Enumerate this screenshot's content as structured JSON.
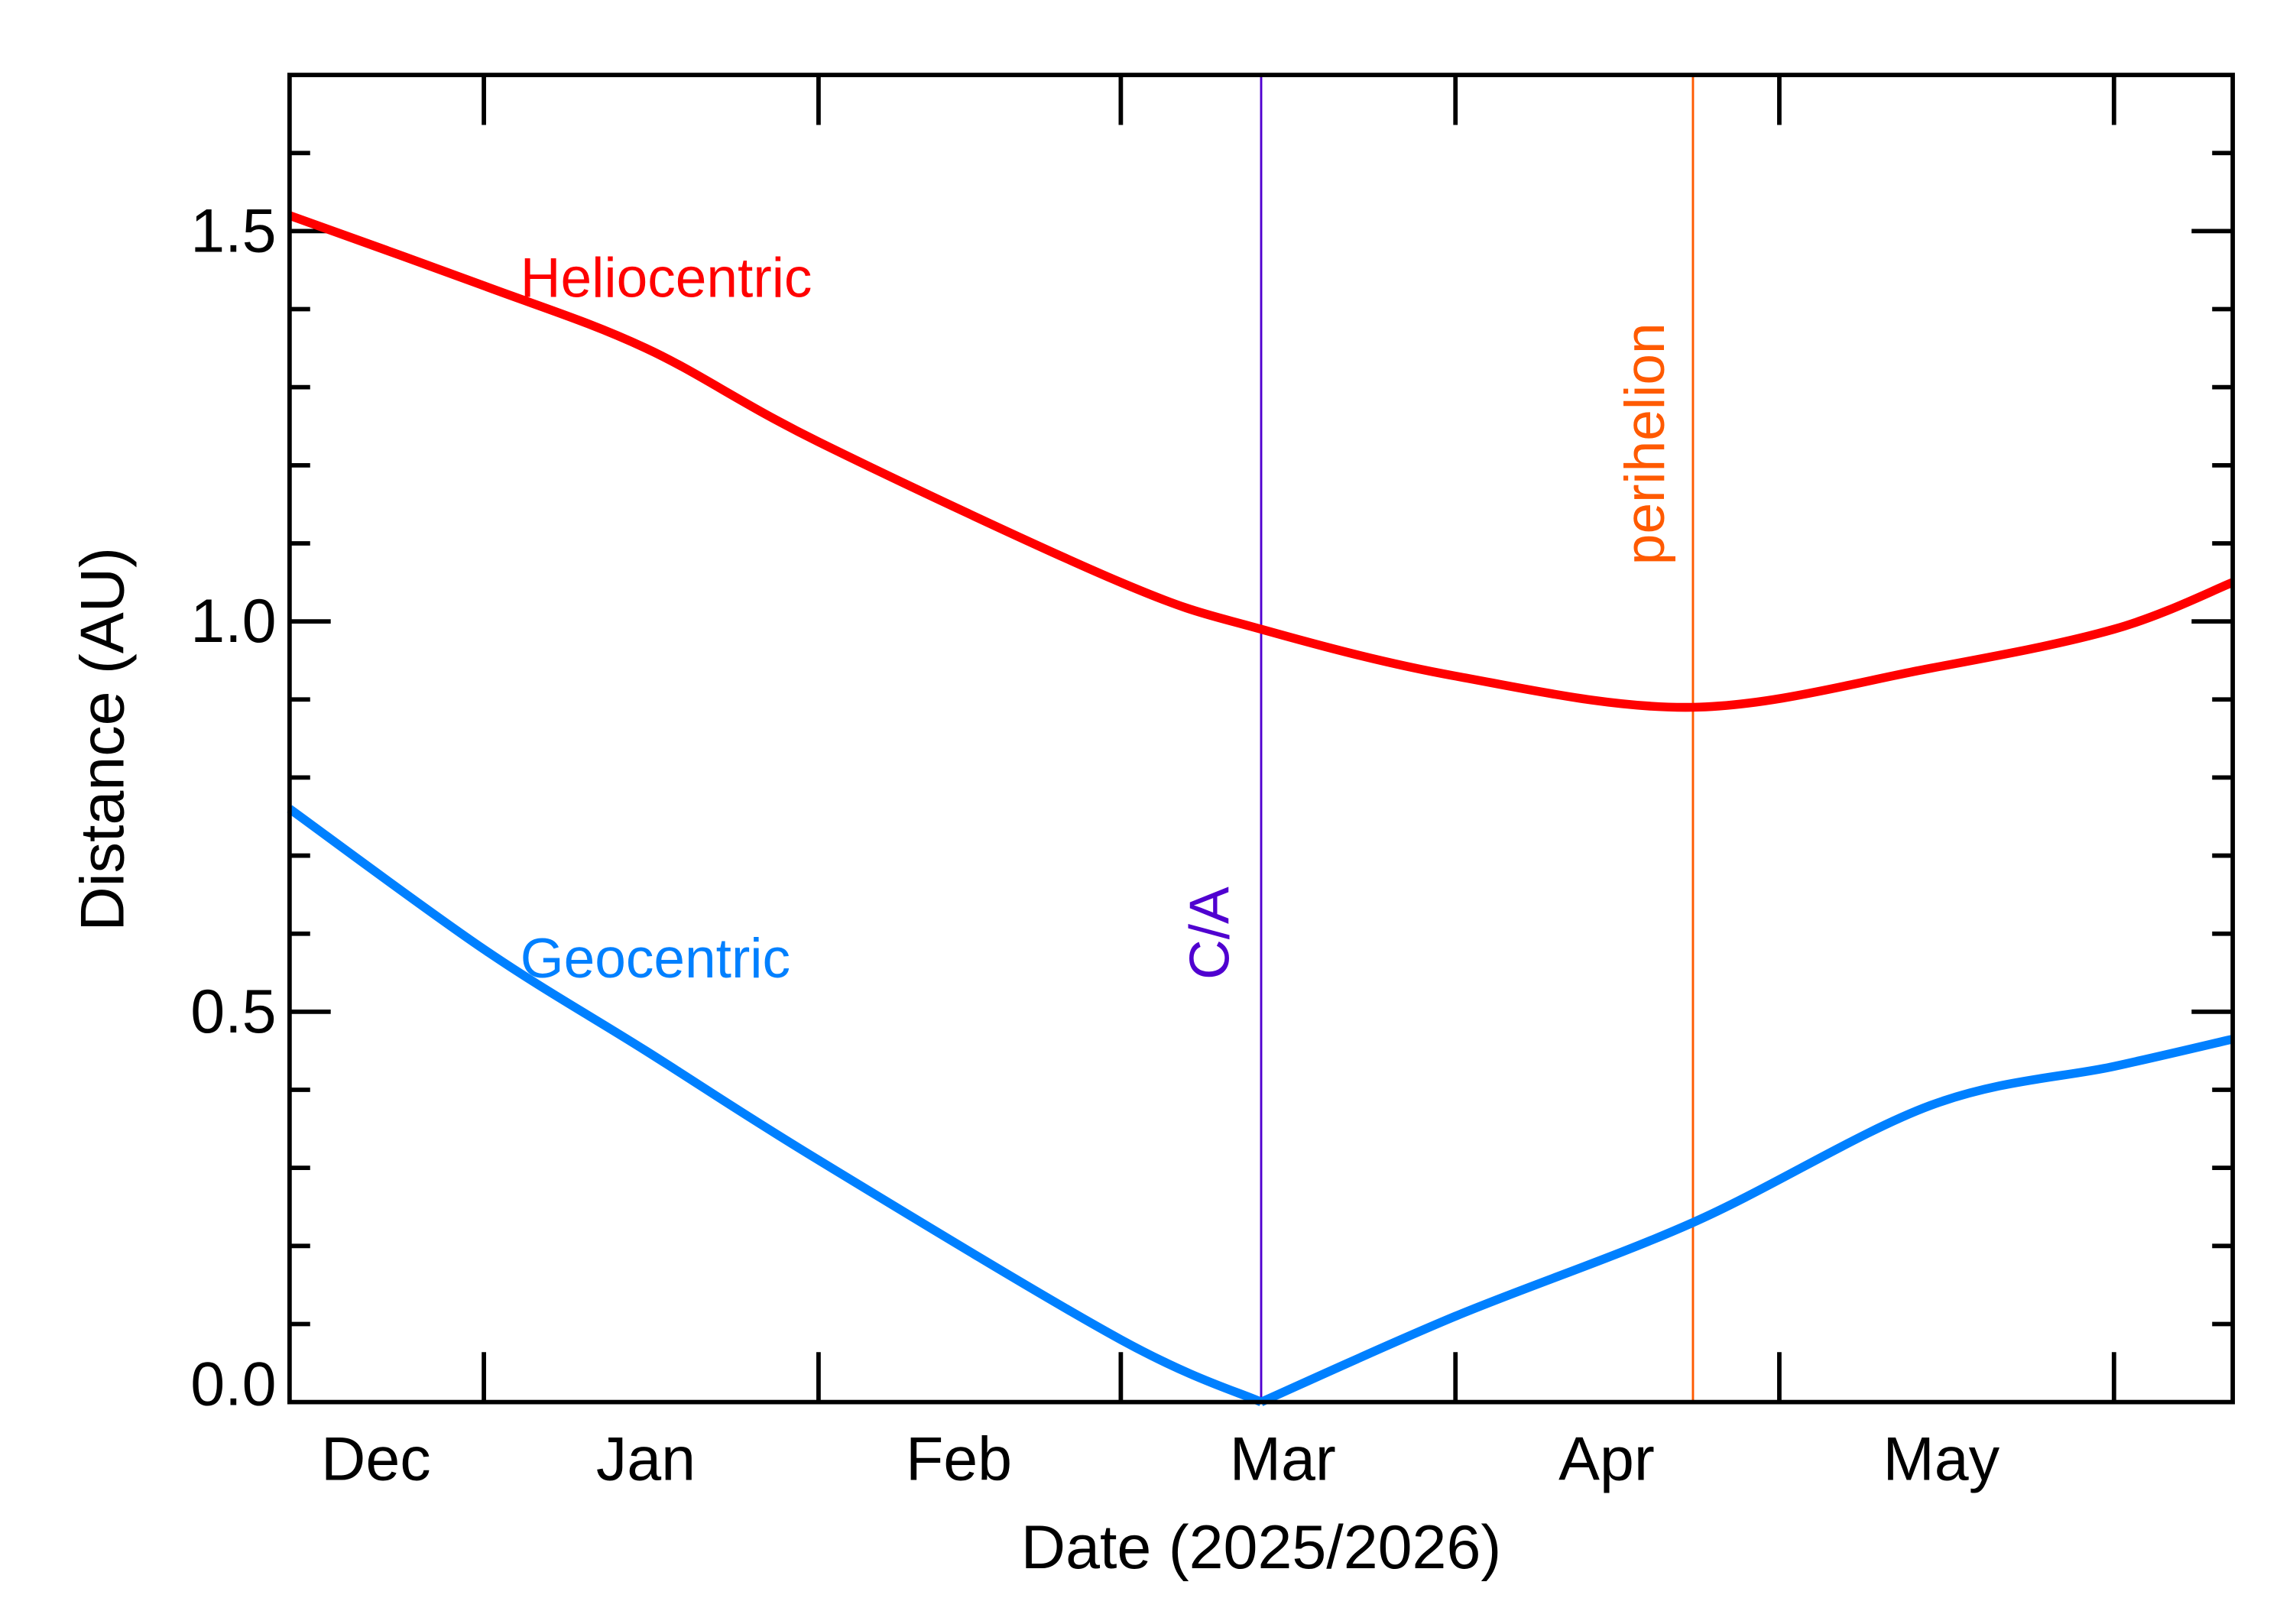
{
  "chart_data": {
    "type": "line",
    "title": "",
    "xlabel": "Date (2025/2026)",
    "ylabel": "Distance (AU)",
    "xlim": [
      "2025-12-14",
      "2026-06-12"
    ],
    "ylim": [
      0,
      1.7
    ],
    "grid": false,
    "x_tick_labels": [
      {
        "label": "Dec",
        "tick": null,
        "label_date": "2025-12-22"
      },
      {
        "label": "Jan",
        "tick": "2026-01-01",
        "label_date": "2026-01-16"
      },
      {
        "label": "Feb",
        "tick": "2026-02-01",
        "label_date": "2026-02-14"
      },
      {
        "label": "Mar",
        "tick": "2026-03-01",
        "label_date": "2026-03-16"
      },
      {
        "label": "Apr",
        "tick": "2026-04-01",
        "label_date": "2026-04-15"
      },
      {
        "label": "May",
        "tick": "2026-05-01",
        "label_date": "2026-05-16"
      },
      {
        "label": "",
        "tick": "2026-06-01",
        "label_date": null
      }
    ],
    "y_ticks": [
      "0.0",
      "0.5",
      "1.0",
      "1.5"
    ],
    "x": [
      "2025-12-14",
      "2026-01-01",
      "2026-01-16",
      "2026-02-01",
      "2026-03-01",
      "2026-03-14",
      "2026-04-01",
      "2026-04-23",
      "2026-05-15",
      "2026-06-01",
      "2026-06-12"
    ],
    "series": [
      {
        "name": "Heliocentric",
        "color": "#ff0000",
        "values": [
          1.52,
          1.43,
          1.35,
          1.23,
          1.05,
          0.99,
          0.93,
          0.89,
          0.94,
          0.99,
          1.05
        ]
      },
      {
        "name": "Geocentric",
        "color": "#0080ff",
        "values": [
          0.76,
          0.58,
          0.45,
          0.31,
          0.08,
          0.0,
          0.11,
          0.23,
          0.38,
          0.43,
          0.465
        ]
      }
    ],
    "annotations": [
      {
        "label": "C/A",
        "date": "2026-03-14",
        "color": "#5000d0"
      },
      {
        "label": "perihelion",
        "date": "2026-04-23",
        "color": "#ff5a00"
      }
    ]
  }
}
